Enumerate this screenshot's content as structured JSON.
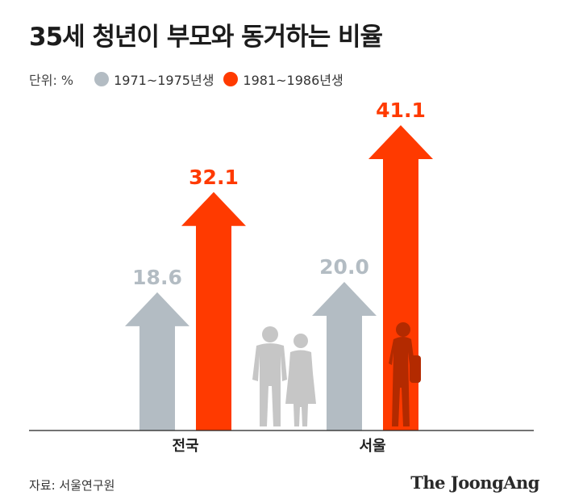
{
  "chart_data": {
    "type": "bar",
    "title": "35세 청년이 부모와 동거하는 비율",
    "unit_label": "단위: %",
    "categories": [
      "전국",
      "서울"
    ],
    "series": [
      {
        "name": "1971~1975년생",
        "values": [
          18.6,
          20.0
        ],
        "color": "#b3bcc3",
        "labels": [
          "18.6",
          "20.0"
        ]
      },
      {
        "name": "1981~1986년생",
        "values": [
          32.1,
          41.1
        ],
        "color": "#ff3a00",
        "labels": [
          "32.1",
          "41.1"
        ]
      }
    ],
    "ylim": [
      0,
      45
    ]
  },
  "footer": {
    "source": "자료: 서울연구원",
    "logo": "The JoongAng"
  },
  "icons": [
    "parents-silhouette-icon",
    "young-adult-silhouette-icon"
  ]
}
